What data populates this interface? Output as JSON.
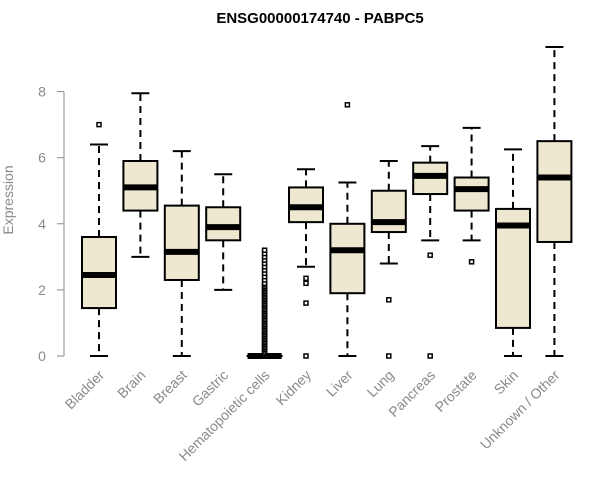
{
  "colors": {
    "box_fill": "#efe8d0",
    "axis": "#8a8a8a",
    "stroke": "#000000"
  },
  "chart_data": {
    "type": "box",
    "title": "ENSG00000174740 - PABPC5",
    "xlabel": "",
    "ylabel": "Expression",
    "ylim": [
      0,
      9.5
    ],
    "yticks": [
      0,
      2,
      4,
      6,
      8
    ],
    "categories": [
      "Bladder",
      "Brain",
      "Breast",
      "Gastric",
      "Hematopoietic cells",
      "Kidney",
      "Liver",
      "Lung",
      "Pancreas",
      "Prostate",
      "Skin",
      "Unknown / Other"
    ],
    "boxes": [
      {
        "name": "Bladder",
        "min": 0,
        "q1": 1.45,
        "median": 2.45,
        "q3": 3.6,
        "max": 6.4,
        "outliers": [
          7.0
        ]
      },
      {
        "name": "Brain",
        "min": 3.0,
        "q1": 4.4,
        "median": 5.1,
        "q3": 5.9,
        "max": 7.95,
        "outliers": []
      },
      {
        "name": "Breast",
        "min": 0,
        "q1": 2.3,
        "median": 3.15,
        "q3": 4.55,
        "max": 6.2,
        "outliers": []
      },
      {
        "name": "Gastric",
        "min": 2.0,
        "q1": 3.5,
        "median": 3.9,
        "q3": 4.5,
        "max": 5.5,
        "outliers": []
      },
      {
        "name": "Hematopoietic cells",
        "min": 0,
        "q1": 0,
        "median": 0,
        "q3": 0,
        "max": 0,
        "outliers": [
          0.1,
          0.15,
          0.2,
          0.25,
          0.3,
          0.35,
          0.4,
          0.45,
          0.5,
          0.55,
          0.6,
          0.65,
          0.7,
          0.75,
          0.8,
          0.85,
          0.9,
          0.95,
          1.0,
          1.05,
          1.1,
          1.15,
          1.2,
          1.25,
          1.3,
          1.35,
          1.4,
          1.45,
          1.5,
          1.55,
          1.6,
          1.65,
          1.7,
          1.75,
          1.8,
          1.85,
          1.9,
          1.95,
          2.0,
          2.05,
          2.1,
          2.15,
          2.2,
          2.3,
          2.4,
          2.5,
          2.6,
          2.7,
          2.8,
          2.9,
          3.0,
          3.1,
          3.2
        ]
      },
      {
        "name": "Kidney",
        "min": 2.7,
        "q1": 4.05,
        "median": 4.5,
        "q3": 5.1,
        "max": 5.65,
        "outliers": [
          0,
          1.6,
          2.2,
          2.35
        ]
      },
      {
        "name": "Liver",
        "min": 0,
        "q1": 1.9,
        "median": 3.2,
        "q3": 4.0,
        "max": 5.25,
        "outliers": [
          7.6
        ]
      },
      {
        "name": "Lung",
        "min": 2.8,
        "q1": 3.75,
        "median": 4.05,
        "q3": 5.0,
        "max": 5.9,
        "outliers": [
          0,
          1.7
        ]
      },
      {
        "name": "Pancreas",
        "min": 3.5,
        "q1": 4.9,
        "median": 5.45,
        "q3": 5.85,
        "max": 6.35,
        "outliers": [
          0,
          3.05
        ]
      },
      {
        "name": "Prostate",
        "min": 3.5,
        "q1": 4.4,
        "median": 5.05,
        "q3": 5.4,
        "max": 6.9,
        "outliers": [
          2.85
        ]
      },
      {
        "name": "Skin",
        "min": 0,
        "q1": 0.85,
        "median": 3.95,
        "q3": 4.45,
        "max": 6.25,
        "outliers": []
      },
      {
        "name": "Unknown / Other",
        "min": 0,
        "q1": 3.45,
        "median": 5.4,
        "q3": 6.5,
        "max": 9.35,
        "outliers": []
      }
    ]
  }
}
